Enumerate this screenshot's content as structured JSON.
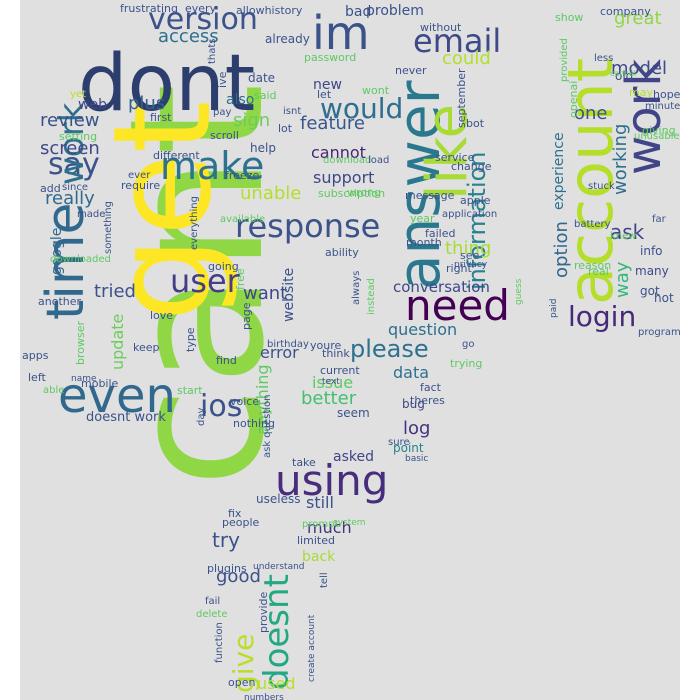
{
  "wordcloud": {
    "words": [
      {
        "t": "cant",
        "c": "#8fd744"
      },
      {
        "t": "get",
        "c": "#fde725"
      },
      {
        "t": "dont",
        "c": "#2c3e6e"
      },
      {
        "t": "answer",
        "c": "#2a788e"
      },
      {
        "t": "account",
        "c": "#b5de2b"
      },
      {
        "t": "work",
        "c": "#414487"
      },
      {
        "t": "like",
        "c": "#a8db34"
      },
      {
        "t": "time",
        "c": "#31688e"
      },
      {
        "t": "im",
        "c": "#3b528b"
      },
      {
        "t": "even",
        "c": "#31688e"
      },
      {
        "t": "need",
        "c": "#440154"
      },
      {
        "t": "using",
        "c": "#472d7b"
      },
      {
        "t": "make",
        "c": "#2c728e"
      },
      {
        "t": "doesnt",
        "c": "#22a884"
      },
      {
        "t": "response",
        "c": "#3b528b"
      },
      {
        "t": "user",
        "c": "#433e85"
      },
      {
        "t": "email",
        "c": "#3e4989"
      },
      {
        "t": "version",
        "c": "#3b528b"
      },
      {
        "t": "information",
        "c": "#26828e"
      },
      {
        "t": "login",
        "c": "#482878"
      },
      {
        "t": "would",
        "c": "#2e6e8e"
      },
      {
        "t": "ios",
        "c": "#3b528b"
      },
      {
        "t": "say",
        "c": "#3b528b"
      },
      {
        "t": "please",
        "c": "#2c728e"
      },
      {
        "t": "give",
        "c": "#b8de29"
      },
      {
        "t": "work",
        "c": "#2d708e"
      },
      {
        "t": "great",
        "c": "#8fd744"
      },
      {
        "t": "access",
        "c": "#2e6e8e"
      },
      {
        "t": "could",
        "c": "#b5de2b"
      },
      {
        "t": "model",
        "c": "#3e4a89"
      },
      {
        "t": "ask",
        "c": "#414487"
      },
      {
        "t": "way",
        "c": "#35b779"
      },
      {
        "t": "one",
        "c": "#3b528b"
      },
      {
        "t": "working",
        "c": "#2d708e"
      },
      {
        "t": "feature",
        "c": "#39568c"
      },
      {
        "t": "option",
        "c": "#31688e"
      },
      {
        "t": "experience",
        "c": "#2c728e"
      },
      {
        "t": "support",
        "c": "#3f4788"
      },
      {
        "t": "cannot",
        "c": "#482475"
      },
      {
        "t": "sign",
        "c": "#6ccd5a"
      },
      {
        "t": "unable",
        "c": "#b5de2b"
      },
      {
        "t": "review",
        "c": "#3b528b"
      },
      {
        "t": "screen",
        "c": "#3e4989"
      },
      {
        "t": "plus",
        "c": "#33638d"
      },
      {
        "t": "really",
        "c": "#31688e"
      },
      {
        "t": "want",
        "c": "#3e4989"
      },
      {
        "t": "website",
        "c": "#3b528b"
      },
      {
        "t": "tried",
        "c": "#3b528b"
      },
      {
        "t": "update",
        "c": "#6ccd5a"
      },
      {
        "t": "anything",
        "c": "#5ec962"
      },
      {
        "t": "error",
        "c": "#3b528b"
      },
      {
        "t": "issue",
        "c": "#5ec962"
      },
      {
        "t": "better",
        "c": "#44bf70"
      },
      {
        "t": "data",
        "c": "#2c728e"
      },
      {
        "t": "log",
        "c": "#46337e"
      },
      {
        "t": "question",
        "c": "#2e6e8e"
      },
      {
        "t": "conversation",
        "c": "#3e4989"
      },
      {
        "t": "thing",
        "c": "#a8db34"
      },
      {
        "t": "new",
        "c": "#3f4788"
      },
      {
        "t": "also",
        "c": "#2e6e8e"
      },
      {
        "t": "date",
        "c": "#3b528b"
      },
      {
        "t": "already",
        "c": "#3b528b"
      },
      {
        "t": "bad",
        "c": "#3b528b"
      },
      {
        "t": "problem",
        "c": "#3b528b"
      },
      {
        "t": "web",
        "c": "#3e4989"
      },
      {
        "t": "asked",
        "c": "#414487"
      },
      {
        "t": "still",
        "c": "#3b528b"
      },
      {
        "t": "much",
        "c": "#46337e"
      },
      {
        "t": "try",
        "c": "#3b528b"
      },
      {
        "t": "good",
        "c": "#3b528b"
      },
      {
        "t": "used",
        "c": "#b8de29"
      },
      {
        "t": "back",
        "c": "#a8db34"
      },
      {
        "t": "google",
        "c": "#31688e"
      },
      {
        "t": "doesnt work",
        "c": "#3b528b"
      },
      {
        "t": "seem",
        "c": "#3b528b"
      },
      {
        "t": "bug",
        "c": "#414487"
      },
      {
        "t": "info",
        "c": "#3b528b"
      },
      {
        "t": "many",
        "c": "#3e4989"
      },
      {
        "t": "got",
        "c": "#3b528b"
      },
      {
        "t": "hot",
        "c": "#3b528b"
      },
      {
        "t": "help",
        "c": "#3b528b"
      },
      {
        "t": "lot",
        "c": "#3b528b"
      },
      {
        "t": "keep",
        "c": "#3b528b"
      },
      {
        "t": "think",
        "c": "#3b528b"
      },
      {
        "t": "let",
        "c": "#3b528b"
      },
      {
        "t": "first",
        "c": "#3b528b"
      },
      {
        "t": "another",
        "c": "#3b528b"
      },
      {
        "t": "right",
        "c": "#3b528b"
      },
      {
        "t": "month",
        "c": "#3b528b"
      },
      {
        "t": "fact",
        "c": "#3b528b"
      },
      {
        "t": "point",
        "c": "#26828e"
      },
      {
        "t": "people",
        "c": "#3b528b"
      },
      {
        "t": "fix",
        "c": "#3b528b"
      },
      {
        "t": "useless",
        "c": "#3b528b"
      },
      {
        "t": "limited",
        "c": "#3b528b"
      },
      {
        "t": "plugins",
        "c": "#3b528b"
      },
      {
        "t": "message",
        "c": "#3b528b"
      },
      {
        "t": "year",
        "c": "#5ec962"
      },
      {
        "t": "failed",
        "c": "#3b528b"
      },
      {
        "t": "see",
        "c": "#3b528b"
      },
      {
        "t": "apple",
        "c": "#3b528b"
      },
      {
        "t": "service",
        "c": "#3b528b"
      },
      {
        "t": "change",
        "c": "#3b528b"
      },
      {
        "t": "stuck",
        "c": "#3b528b"
      },
      {
        "t": "battery",
        "c": "#3b528b"
      },
      {
        "t": "reason",
        "c": "#5ec962"
      },
      {
        "t": "far",
        "c": "#3b528b"
      },
      {
        "t": "real",
        "c": "#5ec962"
      },
      {
        "t": "old",
        "c": "#3b528b"
      },
      {
        "t": "may",
        "c": "#b8de29"
      },
      {
        "t": "hope",
        "c": "#3b528b"
      },
      {
        "t": "minute",
        "c": "#3b528b"
      },
      {
        "t": "company",
        "c": "#3b528b"
      },
      {
        "t": "show",
        "c": "#5ec962"
      },
      {
        "t": "less",
        "c": "#3b528b"
      },
      {
        "t": "giving",
        "c": "#5ec962"
      },
      {
        "t": "program",
        "c": "#3b528b"
      },
      {
        "t": "wont",
        "c": "#5ec962"
      },
      {
        "t": "never",
        "c": "#3b528b"
      },
      {
        "t": "without",
        "c": "#3b528b"
      },
      {
        "t": "september",
        "c": "#3b528b"
      },
      {
        "t": "bot",
        "c": "#3b528b"
      },
      {
        "t": "frustrating",
        "c": "#3b528b"
      },
      {
        "t": "every",
        "c": "#3b528b"
      },
      {
        "t": "allowhistory",
        "c": "#3b528b"
      },
      {
        "t": "password",
        "c": "#5ec962"
      },
      {
        "t": "said",
        "c": "#5ec962"
      },
      {
        "t": "isnt",
        "c": "#3b528b"
      },
      {
        "t": "thats",
        "c": "#3b528b"
      },
      {
        "t": "ive",
        "c": "#3b528b"
      },
      {
        "t": "yet",
        "c": "#b8de29"
      },
      {
        "t": "setting",
        "c": "#5ec962"
      },
      {
        "t": "pay",
        "c": "#3b528b"
      },
      {
        "t": "scroll",
        "c": "#3b528b"
      },
      {
        "t": "freeze",
        "c": "#3b528b"
      },
      {
        "t": "different",
        "c": "#3b528b"
      },
      {
        "t": "add",
        "c": "#3b528b"
      },
      {
        "t": "since",
        "c": "#3b528b"
      },
      {
        "t": "require",
        "c": "#3b528b"
      },
      {
        "t": "ever",
        "c": "#3b528b"
      },
      {
        "t": "made",
        "c": "#3b528b"
      },
      {
        "t": "something",
        "c": "#3b528b"
      },
      {
        "t": "downloaded",
        "c": "#5ec962"
      },
      {
        "t": "everything",
        "c": "#3b528b"
      },
      {
        "t": "available",
        "c": "#5ec962"
      },
      {
        "t": "going",
        "c": "#3b528b"
      },
      {
        "t": "download",
        "c": "#5ec962"
      },
      {
        "t": "load",
        "c": "#3b528b"
      },
      {
        "t": "wrong",
        "c": "#5ec962"
      },
      {
        "t": "subscription",
        "c": "#5ec962"
      },
      {
        "t": "ability",
        "c": "#3b528b"
      },
      {
        "t": "always",
        "c": "#3b528b"
      },
      {
        "t": "instead",
        "c": "#5ec962"
      },
      {
        "t": "application",
        "c": "#3b528b"
      },
      {
        "t": "privacy",
        "c": "#3b528b"
      },
      {
        "t": "guess",
        "c": "#5ec962"
      },
      {
        "t": "paid",
        "c": "#3b528b"
      },
      {
        "t": "go",
        "c": "#3b528b"
      },
      {
        "t": "trying",
        "c": "#5ec962"
      },
      {
        "t": "current",
        "c": "#3b528b"
      },
      {
        "t": "text",
        "c": "#3b528b"
      },
      {
        "t": "theres",
        "c": "#3b528b"
      },
      {
        "t": "youre",
        "c": "#3b528b"
      },
      {
        "t": "birthday",
        "c": "#3b528b"
      },
      {
        "t": "type",
        "c": "#3b528b"
      },
      {
        "t": "find",
        "c": "#3b528b"
      },
      {
        "t": "page",
        "c": "#3b528b"
      },
      {
        "t": "free",
        "c": "#5ec962"
      },
      {
        "t": "love",
        "c": "#3b528b"
      },
      {
        "t": "browser",
        "c": "#5ec962"
      },
      {
        "t": "apps",
        "c": "#3b528b"
      },
      {
        "t": "left",
        "c": "#3b528b"
      },
      {
        "t": "able",
        "c": "#5ec962"
      },
      {
        "t": "name",
        "c": "#3b528b"
      },
      {
        "t": "mobile",
        "c": "#3b528b"
      },
      {
        "t": "start",
        "c": "#5ec962"
      },
      {
        "t": "voice",
        "c": "#3b528b"
      },
      {
        "t": "day",
        "c": "#3b528b"
      },
      {
        "t": "nothing",
        "c": "#3b528b"
      },
      {
        "t": "ask question",
        "c": "#3b528b"
      },
      {
        "t": "take",
        "c": "#3b528b"
      },
      {
        "t": "prompt",
        "c": "#5ec962"
      },
      {
        "t": "system",
        "c": "#5ec962"
      },
      {
        "t": "sure",
        "c": "#3b528b"
      },
      {
        "t": "basic",
        "c": "#3b528b"
      },
      {
        "t": "understand",
        "c": "#3b528b"
      },
      {
        "t": "tell",
        "c": "#3b528b"
      },
      {
        "t": "fail",
        "c": "#3b528b"
      },
      {
        "t": "delete",
        "c": "#5ec962"
      },
      {
        "t": "function",
        "c": "#3b528b"
      },
      {
        "t": "provide",
        "c": "#3b528b"
      },
      {
        "t": "create account",
        "c": "#3b528b"
      },
      {
        "t": "open",
        "c": "#3b528b"
      },
      {
        "t": "numbers",
        "c": "#3b528b"
      },
      {
        "t": "openai",
        "c": "#5ec962"
      },
      {
        "t": "unusable",
        "c": "#5ec962"
      },
      {
        "t": "provided",
        "c": "#5ec962"
      },
      {
        "t": "cancel",
        "c": "#5ec962"
      },
      {
        "t": "knew",
        "c": "#5ec962"
      }
    ]
  }
}
